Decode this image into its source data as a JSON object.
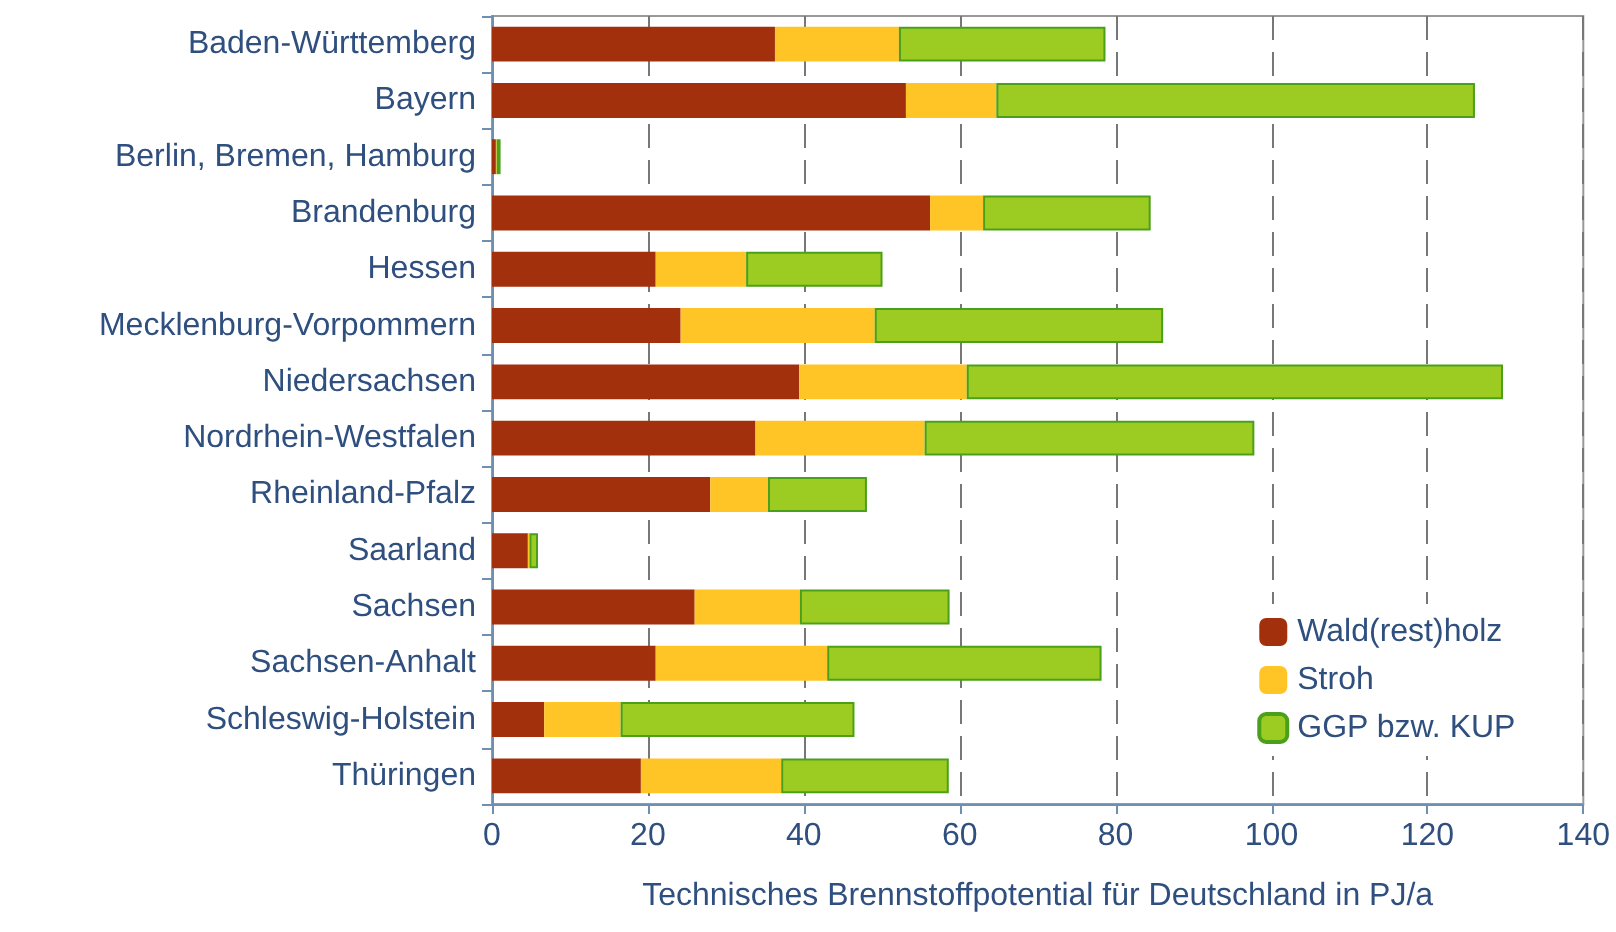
{
  "chart_data": {
    "type": "bar",
    "orientation": "horizontal",
    "stacked": true,
    "xlabel": "Technisches Brennstoffpotential für Deutschland in PJ/a",
    "categories": [
      "Baden-Württemberg",
      "Bayern",
      "Berlin, Bremen, Hamburg",
      "Brandenburg",
      "Hessen",
      "Mecklenburg-Vorpommern",
      "Niedersachsen",
      "Nordrhein-Westfalen",
      "Rheinland-Pfalz",
      "Saarland",
      "Sachsen",
      "Sachsen-Anhalt",
      "Schleswig-Holstein",
      "Thüringen"
    ],
    "series": [
      {
        "name": "Wald(rest)holz",
        "color": "#a3300c",
        "values": [
          36.3,
          53.1,
          0.5,
          56.2,
          21.0,
          24.2,
          39.4,
          33.8,
          28.0,
          4.6,
          26.0,
          21.0,
          6.7,
          19.1
        ]
      },
      {
        "name": "Stroh",
        "color": "#ffc526",
        "values": [
          15.9,
          11.6,
          0.1,
          6.8,
          11.6,
          24.9,
          21.5,
          21.7,
          7.4,
          0.2,
          13.5,
          22.0,
          9.8,
          18.0
        ]
      },
      {
        "name": "GGP bzw. KUP",
        "color": "#9ccc22",
        "values": [
          26.5,
          61.4,
          0.5,
          21.5,
          17.5,
          37.0,
          68.8,
          42.3,
          12.7,
          1.1,
          19.2,
          35.2,
          30.0,
          21.5
        ]
      }
    ],
    "xlim": [
      0,
      140
    ],
    "xticks": [
      0,
      20,
      40,
      60,
      80,
      100,
      120,
      140
    ],
    "grid": "x",
    "legend": "bottom right"
  }
}
